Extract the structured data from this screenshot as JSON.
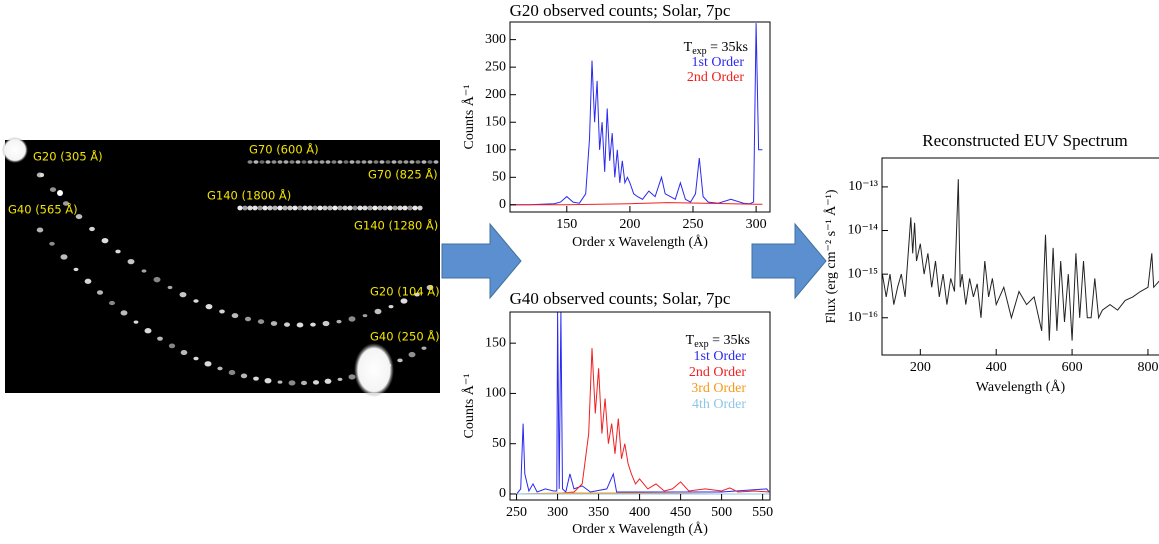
{
  "detector_image": {
    "labels": [
      "G20 (305 Å)",
      "G70 (600 Å)",
      "G70 (825 Å)",
      "G140 (1800 Å)",
      "G40 (565 Å)",
      "G140 (1280 Å)",
      "G20 (104 Å)",
      "G40 (250 Å)"
    ]
  },
  "chart_data": [
    {
      "type": "line",
      "title": "G20 observed counts; Solar, 7pc",
      "x_label": "Order x Wavelength (Å)",
      "y_label": "Counts Å⁻¹",
      "legend_note": {
        "main": "T",
        "sub": "exp",
        "rest": " = 35ks"
      },
      "xlim": [
        105,
        311
      ],
      "ylim": [
        -13,
        332
      ],
      "xticks": [
        150,
        200,
        250,
        300
      ],
      "yticks": [
        0,
        50,
        100,
        150,
        200,
        250,
        300
      ],
      "series": [
        {
          "name": "1st Order",
          "color": "#2a2af0",
          "x": [
            105,
            120,
            140,
            145,
            150,
            155,
            160,
            165,
            168,
            170,
            172,
            174,
            176,
            178,
            180,
            182,
            184,
            186,
            188,
            190,
            192,
            194,
            196,
            198,
            200,
            203,
            206,
            210,
            215,
            220,
            225,
            228,
            232,
            236,
            240,
            244,
            248,
            252,
            255,
            258,
            262,
            270,
            280,
            290,
            295,
            298,
            300,
            302,
            305
          ],
          "values": [
            0,
            0,
            2,
            5,
            15,
            5,
            3,
            20,
            120,
            262,
            150,
            225,
            100,
            150,
            60,
            175,
            80,
            130,
            50,
            100,
            40,
            80,
            40,
            50,
            40,
            20,
            15,
            10,
            25,
            15,
            50,
            20,
            15,
            10,
            40,
            10,
            5,
            20,
            85,
            15,
            5,
            3,
            10,
            3,
            2,
            5,
            330,
            100,
            100
          ]
        },
        {
          "name": "2nd Order",
          "color": "#f02020",
          "x": [
            105,
            150,
            200,
            230,
            260,
            300,
            305
          ],
          "values": [
            0,
            0,
            2,
            4,
            3,
            1,
            1
          ]
        }
      ]
    },
    {
      "type": "line",
      "title": "G40 observed counts; Solar, 7pc",
      "x_label": "Order x Wavelength (Å)",
      "y_label": "Counts Å⁻¹",
      "legend_note": {
        "main": "T",
        "sub": "exp",
        "rest": " = 35ks"
      },
      "xlim": [
        242,
        559
      ],
      "ylim": [
        -6,
        181
      ],
      "xticks": [
        250,
        300,
        350,
        400,
        450,
        500,
        550
      ],
      "yticks": [
        0,
        50,
        100,
        150
      ],
      "series": [
        {
          "name": "1st Order",
          "color": "#2a2af0",
          "x": [
            250,
            255,
            258,
            260,
            265,
            270,
            275,
            285,
            295,
            299,
            300,
            302,
            304,
            306,
            310,
            315,
            320,
            330,
            340,
            360,
            368,
            372,
            400,
            450,
            500,
            555,
            558
          ],
          "values": [
            0,
            5,
            70,
            20,
            3,
            10,
            2,
            5,
            3,
            3,
            181,
            5,
            181,
            5,
            2,
            20,
            5,
            8,
            2,
            5,
            20,
            2,
            2,
            2,
            2,
            5,
            2
          ]
        },
        {
          "name": "2nd Order",
          "color": "#f02020",
          "x": [
            290,
            320,
            330,
            338,
            342,
            346,
            350,
            354,
            358,
            362,
            366,
            370,
            374,
            378,
            382,
            386,
            390,
            395,
            400,
            410,
            420,
            430,
            440,
            450,
            460,
            480,
            500,
            510,
            520,
            540,
            558
          ],
          "values": [
            0,
            2,
            10,
            60,
            145,
            80,
            125,
            60,
            95,
            50,
            70,
            40,
            75,
            35,
            50,
            30,
            20,
            10,
            15,
            5,
            10,
            3,
            5,
            12,
            3,
            5,
            3,
            6,
            2,
            3,
            2
          ]
        },
        {
          "name": "3rd Order",
          "color": "#f59a1a",
          "x": [
            250,
            300,
            400,
            500,
            558
          ],
          "values": [
            0,
            1,
            1,
            0,
            0
          ]
        },
        {
          "name": "4th Order",
          "color": "#8fc6e8",
          "x": [
            250,
            400,
            558
          ],
          "values": [
            0,
            0,
            0
          ]
        }
      ]
    },
    {
      "type": "line",
      "title": "Reconstructed EUV Spectrum",
      "x_label": "Wavelength (Å)",
      "y_label": "Flux (erg cm⁻² s⁻¹ Å⁻¹)",
      "log_y": true,
      "xlim": [
        99,
        837
      ],
      "ylim": [
        1.4e-17,
        4.6e-13
      ],
      "xticks": [
        200,
        400,
        600,
        800
      ],
      "yticks": [
        {
          "value": 1e-16,
          "label": "10⁻¹⁶"
        },
        {
          "value": 1e-15,
          "label": "10⁻¹⁵"
        },
        {
          "value": 1e-14,
          "label": "10⁻¹⁴"
        },
        {
          "value": 1e-13,
          "label": "10⁻¹³"
        }
      ],
      "series": [
        {
          "color": "#222222",
          "x": [
            100,
            110,
            120,
            130,
            140,
            150,
            160,
            170,
            175,
            180,
            185,
            190,
            200,
            210,
            220,
            230,
            240,
            250,
            260,
            270,
            280,
            290,
            300,
            305,
            310,
            320,
            330,
            340,
            350,
            360,
            370,
            380,
            390,
            400,
            420,
            440,
            460,
            480,
            500,
            520,
            530,
            540,
            550,
            560,
            570,
            580,
            590,
            600,
            610,
            620,
            630,
            640,
            650,
            660,
            670,
            680,
            700,
            720,
            740,
            760,
            780,
            800,
            810,
            815,
            830,
            837
          ],
          "values": [
            1e-15,
            3e-16,
            1e-15,
            2e-16,
            5e-16,
            1e-15,
            3e-16,
            5e-15,
            2e-14,
            3e-15,
            1.5e-14,
            2e-15,
            5e-15,
            1e-15,
            3e-15,
            5e-16,
            2e-15,
            3e-16,
            1e-15,
            2e-16,
            8e-16,
            4e-16,
            1.5e-13,
            5e-16,
            1e-15,
            2e-16,
            8e-16,
            3e-16,
            6e-16,
            1e-16,
            2e-15,
            3e-16,
            8e-16,
            2e-16,
            5e-16,
            1e-16,
            4e-16,
            2e-16,
            3e-16,
            5e-17,
            8e-15,
            3e-17,
            4e-15,
            5e-17,
            2e-15,
            8e-17,
            1e-15,
            3e-17,
            3e-15,
            1e-16,
            2e-15,
            1e-16,
            1e-16,
            8e-16,
            1e-16,
            1.5e-16,
            2e-16,
            1.5e-16,
            2.5e-16,
            3e-16,
            4e-16,
            5e-16,
            3e-15,
            5e-16,
            7e-16,
            9e-16
          ]
        }
      ]
    }
  ]
}
